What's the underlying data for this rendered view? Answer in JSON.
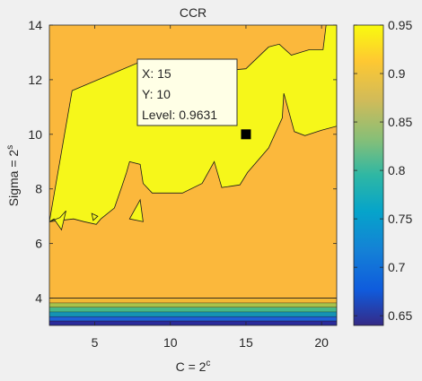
{
  "chart_data": {
    "type": "contour",
    "title": "CCR",
    "xlabel": {
      "base": "C = 2",
      "sup": "c"
    },
    "ylabel": {
      "base": "Sigma = 2",
      "sup": "s"
    },
    "xlim": [
      2,
      21
    ],
    "ylim": [
      3,
      14
    ],
    "xticks": [
      5,
      10,
      15,
      20
    ],
    "yticks": [
      4,
      6,
      8,
      10,
      12,
      14
    ],
    "colorbar": {
      "range": [
        0.64,
        0.95
      ],
      "ticks": [
        0.65,
        0.7,
        0.75,
        0.8,
        0.85,
        0.9,
        0.95
      ],
      "colormap": "parula"
    },
    "background_level_color": "#fbb83c",
    "high_region_color": "#f6f71a",
    "low_band_colors": [
      "#2a2a9b",
      "#1f5fd6",
      "#1593b4",
      "#48b786",
      "#a7c24b",
      "#f2b834"
    ],
    "high_region_polygon": [
      [
        3.5,
        11.6
      ],
      [
        8.2,
        12.7
      ],
      [
        8.6,
        12.1
      ],
      [
        10,
        12.2
      ],
      [
        12.2,
        12.6
      ],
      [
        13,
        12.3
      ],
      [
        15,
        12.4
      ],
      [
        16.5,
        13.2
      ],
      [
        17.2,
        13.3
      ],
      [
        18,
        12.9
      ],
      [
        19.2,
        13.1
      ],
      [
        20.1,
        13.1
      ],
      [
        20.3,
        14
      ],
      [
        21,
        14
      ],
      [
        21,
        10.3
      ],
      [
        20,
        10.15
      ],
      [
        18.9,
        9.95
      ],
      [
        18.2,
        10.1
      ],
      [
        17.5,
        11.5
      ],
      [
        17.4,
        10.6
      ],
      [
        16.5,
        9.5
      ],
      [
        15.1,
        8.6
      ],
      [
        14.6,
        8.15
      ],
      [
        13.4,
        8.05
      ],
      [
        12.9,
        9.0
      ],
      [
        12.1,
        8.2
      ],
      [
        10.8,
        7.85
      ],
      [
        8.8,
        7.85
      ],
      [
        8.2,
        8.2
      ],
      [
        8.0,
        8.9
      ],
      [
        7.3,
        9.0
      ],
      [
        7.1,
        8.6
      ],
      [
        6.8,
        8.1
      ],
      [
        6.3,
        7.3
      ],
      [
        5.4,
        6.9
      ],
      [
        5.1,
        6.7
      ],
      [
        4.3,
        6.8
      ],
      [
        3.6,
        6.9
      ],
      [
        2,
        6.8
      ]
    ],
    "high_islands": [
      [
        [
          2,
          6.8
        ],
        [
          2.7,
          6.95
        ],
        [
          3.1,
          7.2
        ],
        [
          2.8,
          6.5
        ],
        [
          2.3,
          6.9
        ]
      ],
      [
        [
          4.8,
          7.1
        ],
        [
          5.2,
          7.0
        ],
        [
          4.9,
          6.85
        ]
      ],
      [
        [
          7.3,
          6.9
        ],
        [
          8.0,
          7.6
        ],
        [
          8.2,
          6.8
        ]
      ]
    ],
    "datatip": {
      "x_label": "X: 15",
      "y_label": "Y: 10",
      "level_label": "Level: 0.9631",
      "x": 15,
      "y": 10
    }
  }
}
